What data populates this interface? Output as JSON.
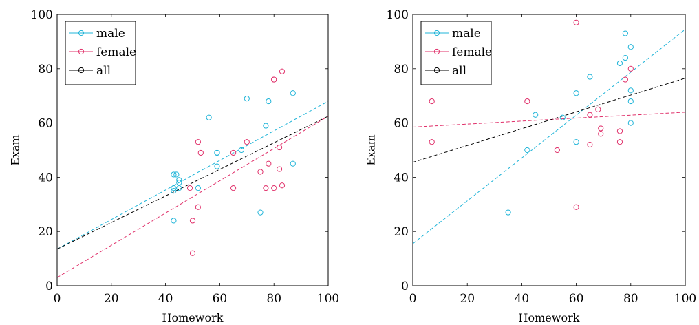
{
  "chart_data": [
    {
      "type": "scatter",
      "xlabel": "Homework",
      "ylabel": "Exam",
      "xlim": [
        0,
        100
      ],
      "ylim": [
        0,
        100
      ],
      "xticks": [
        "0",
        "20",
        "40",
        "60",
        "80",
        "100"
      ],
      "yticks": [
        "0",
        "20",
        "40",
        "60",
        "80",
        "100"
      ],
      "grid": false,
      "legend_position": "top-left",
      "legend": [
        "male",
        "female",
        "all"
      ],
      "series": [
        {
          "name": "male",
          "color": "#1fb4d8",
          "points": [
            [
              43,
              41
            ],
            [
              44,
              41
            ],
            [
              43,
              36
            ],
            [
              43,
              35
            ],
            [
              45,
              39
            ],
            [
              45,
              38
            ],
            [
              45,
              36
            ],
            [
              43,
              24
            ],
            [
              52,
              36
            ],
            [
              56,
              62
            ],
            [
              59,
              49
            ],
            [
              59,
              49
            ],
            [
              59,
              44
            ],
            [
              68,
              50
            ],
            [
              70,
              69
            ],
            [
              75,
              27
            ],
            [
              77,
              59
            ],
            [
              78,
              68
            ],
            [
              87,
              71
            ],
            [
              87,
              45
            ]
          ],
          "fit": [
            [
              0,
              13.5
            ],
            [
              100,
              68
            ]
          ]
        },
        {
          "name": "female",
          "color": "#e0306a",
          "points": [
            [
              49,
              36
            ],
            [
              50,
              24
            ],
            [
              50,
              12
            ],
            [
              52,
              53
            ],
            [
              52,
              29
            ],
            [
              53,
              49
            ],
            [
              65,
              49
            ],
            [
              65,
              36
            ],
            [
              70,
              53
            ],
            [
              75,
              42
            ],
            [
              77,
              36
            ],
            [
              78,
              45
            ],
            [
              80,
              76
            ],
            [
              80,
              76
            ],
            [
              80,
              36
            ],
            [
              82,
              43
            ],
            [
              82,
              51
            ],
            [
              83,
              79
            ],
            [
              83,
              37
            ]
          ],
          "fit": [
            [
              0,
              3
            ],
            [
              100,
              62.5
            ]
          ]
        },
        {
          "name": "all",
          "color": "#000000",
          "points": [],
          "fit": [
            [
              0,
              13.5
            ],
            [
              100,
              62.5
            ]
          ]
        }
      ]
    },
    {
      "type": "scatter",
      "xlabel": "Homework",
      "ylabel": "Exam",
      "xlim": [
        0,
        100
      ],
      "ylim": [
        0,
        100
      ],
      "xticks": [
        "0",
        "20",
        "40",
        "60",
        "80",
        "100"
      ],
      "yticks": [
        "0",
        "20",
        "40",
        "60",
        "80",
        "100"
      ],
      "grid": false,
      "legend_position": "top-left",
      "legend": [
        "male",
        "female",
        "all"
      ],
      "series": [
        {
          "name": "male",
          "color": "#1fb4d8",
          "points": [
            [
              35,
              27
            ],
            [
              42,
              50
            ],
            [
              45,
              63
            ],
            [
              55,
              62
            ],
            [
              60,
              71
            ],
            [
              60,
              53
            ],
            [
              65,
              77
            ],
            [
              76,
              82
            ],
            [
              78,
              93
            ],
            [
              78,
              84
            ],
            [
              80,
              88
            ],
            [
              80,
              72
            ],
            [
              80,
              68
            ],
            [
              80,
              60
            ]
          ],
          "fit": [
            [
              0,
              15.5
            ],
            [
              100,
              94.5
            ]
          ]
        },
        {
          "name": "female",
          "color": "#e0306a",
          "points": [
            [
              7,
              68
            ],
            [
              7,
              53
            ],
            [
              42,
              68
            ],
            [
              53,
              50
            ],
            [
              60,
              97
            ],
            [
              60,
              29
            ],
            [
              65,
              63
            ],
            [
              65,
              52
            ],
            [
              68,
              65
            ],
            [
              69,
              58
            ],
            [
              69,
              56
            ],
            [
              76,
              57
            ],
            [
              76,
              53
            ],
            [
              78,
              76
            ],
            [
              80,
              80
            ]
          ],
          "fit": [
            [
              0,
              58.5
            ],
            [
              100,
              64
            ]
          ]
        },
        {
          "name": "all",
          "color": "#000000",
          "points": [],
          "fit": [
            [
              0,
              45.5
            ],
            [
              100,
              76.5
            ]
          ]
        }
      ]
    }
  ]
}
